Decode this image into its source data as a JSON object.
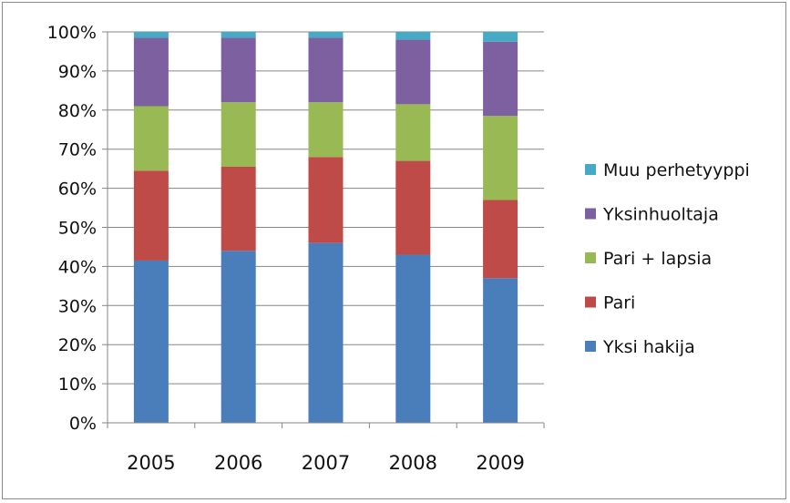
{
  "chart_data": {
    "type": "bar",
    "stacked": true,
    "percent": true,
    "categories": [
      "2005",
      "2006",
      "2007",
      "2008",
      "2009"
    ],
    "ylim": [
      0,
      100
    ],
    "yticks": [
      "0%",
      "10%",
      "20%",
      "30%",
      "40%",
      "50%",
      "60%",
      "70%",
      "80%",
      "90%",
      "100%"
    ],
    "grid": true,
    "legend_position": "right",
    "series": [
      {
        "name": "Yksi hakija",
        "color": "#4a7ebb",
        "values": [
          41.5,
          44,
          46,
          43,
          37
        ]
      },
      {
        "name": "Pari",
        "color": "#be4b48",
        "values": [
          23,
          21.5,
          22,
          24,
          20
        ]
      },
      {
        "name": "Pari + lapsia",
        "color": "#98b954",
        "values": [
          16.5,
          16.5,
          14,
          14.5,
          21.5
        ]
      },
      {
        "name": "Yksinhuoltaja",
        "color": "#7d60a0",
        "values": [
          17.5,
          16.5,
          16.5,
          16.5,
          19
        ]
      },
      {
        "name": "Muu perhetyyppi",
        "color": "#46aac5",
        "values": [
          1.5,
          1.5,
          1.5,
          2,
          2.5
        ]
      }
    ]
  }
}
